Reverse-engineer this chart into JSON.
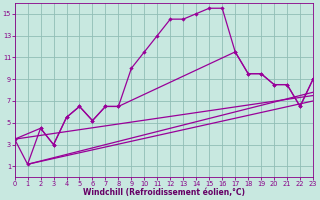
{
  "background_color": "#c8e8e0",
  "grid_color": "#90bdb5",
  "line_color": "#990099",
  "xlabel": "Windchill (Refroidissement éolien,°C)",
  "xlabel_color": "#660066",
  "tick_color": "#880088",
  "xlim": [
    0,
    23
  ],
  "ylim": [
    0,
    16
  ],
  "xticks": [
    0,
    1,
    2,
    3,
    4,
    5,
    6,
    7,
    8,
    9,
    10,
    11,
    12,
    13,
    14,
    15,
    16,
    17,
    18,
    19,
    20,
    21,
    22,
    23
  ],
  "yticks": [
    1,
    3,
    5,
    7,
    9,
    11,
    13,
    15
  ],
  "curve1_x": [
    0,
    1,
    2,
    3,
    4,
    5,
    6,
    7,
    8,
    9,
    10,
    11,
    12,
    13,
    14,
    15,
    16,
    17,
    18,
    19,
    20,
    21,
    22,
    23
  ],
  "curve1_y": [
    3.5,
    1.2,
    4.5,
    3.0,
    5.5,
    6.5,
    5.2,
    6.5,
    6.5,
    10.0,
    11.5,
    13.0,
    14.5,
    14.5,
    15.0,
    15.5,
    15.5,
    11.5,
    9.5,
    9.5,
    8.5,
    8.5,
    6.5,
    9.0
  ],
  "curve2_x": [
    0,
    2,
    3,
    4,
    5,
    6,
    7,
    8,
    17,
    18,
    19,
    20,
    21,
    22,
    23
  ],
  "curve2_y": [
    3.5,
    4.5,
    3.0,
    5.5,
    6.5,
    5.2,
    6.5,
    6.5,
    11.5,
    9.5,
    9.5,
    8.5,
    8.5,
    6.5,
    9.0
  ],
  "line1_x": [
    0,
    23
  ],
  "line1_y": [
    3.5,
    7.5
  ],
  "line2_x": [
    1,
    23
  ],
  "line2_y": [
    1.2,
    7.0
  ],
  "line3_x": [
    1,
    23
  ],
  "line3_y": [
    1.2,
    7.8
  ]
}
